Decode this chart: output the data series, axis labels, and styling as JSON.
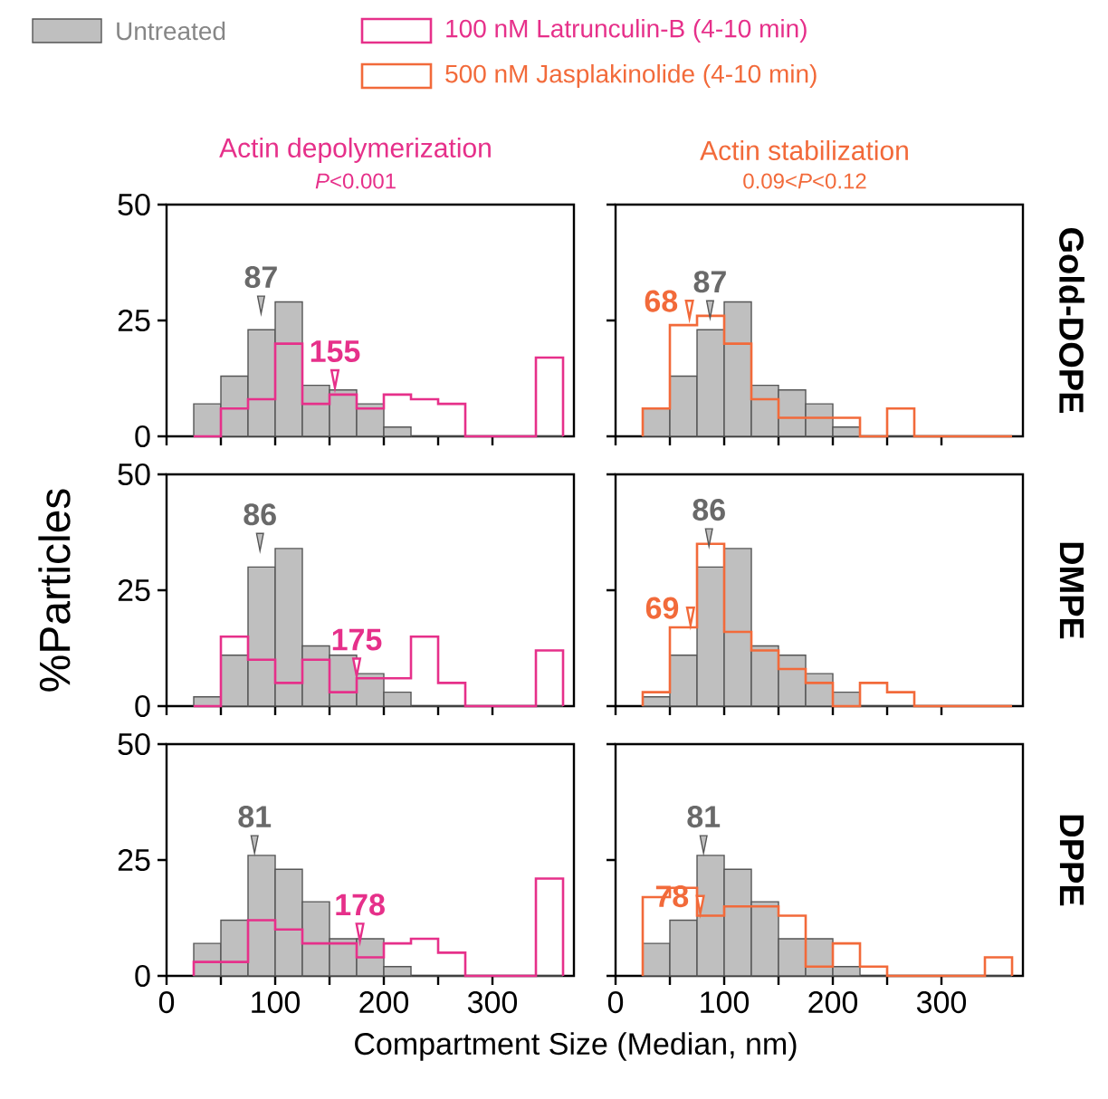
{
  "chart_data": [
    {
      "type": "histogram",
      "title": "Actin depolymerization",
      "subtitle": "*P*<0.001",
      "legend": "top",
      "tick_labels": "y",
      "bins": [
        25,
        50,
        75,
        100,
        125,
        150,
        175,
        200,
        225,
        250,
        275,
        300,
        325,
        340,
        365
      ],
      "series": [
        {
          "name": "Untreated",
          "color": "#bfbfbf",
          "values": [
            7,
            13,
            23,
            29,
            11,
            10,
            7,
            2,
            0,
            0,
            0,
            0,
            0,
            0
          ]
        },
        {
          "name": "100 nM Latrunculin-B (4-10 min)",
          "color": "#e6308a",
          "values": [
            0,
            6,
            8,
            20,
            7,
            9,
            6,
            9,
            8,
            7,
            0,
            0,
            0,
            17
          ]
        },
        {
          "type": "scatter",
          "marker": "triangle",
          "color": "#bfbfbf",
          "x": [
            87
          ],
          "values": [
            29
          ]
        },
        {
          "type": "scatter",
          "marker": "triangle",
          "color": "#e6308a",
          "x": [
            155
          ],
          "values": [
            13
          ]
        }
      ],
      "annotations": [
        {
          "text": "87",
          "x": 87,
          "y": 29
        },
        {
          "text": "155",
          "x": 155,
          "y": 13
        }
      ],
      "xlim": [
        0,
        375
      ],
      "ylim": [
        0,
        50
      ],
      "xticks": [
        0,
        {
          "value": 50,
          "label": null
        },
        100,
        {
          "value": 150,
          "label": null
        },
        200,
        {
          "value": 250,
          "label": null
        },
        300
      ],
      "yticks": [
        0,
        25,
        50
      ]
    },
    {
      "type": "histogram",
      "title": "Actin stabilization",
      "subtitle": "0.09<*P*<0.12",
      "legend": "top",
      "tick_labels": false,
      "y2label": "Gold-DOPE",
      "bins": [
        25,
        50,
        75,
        100,
        125,
        150,
        175,
        200,
        225,
        250,
        275,
        300,
        325,
        340,
        365
      ],
      "series": [
        {
          "color": "#bfbfbf",
          "values": [
            6,
            13,
            23,
            29,
            11,
            10,
            7,
            2,
            0,
            0,
            0,
            0,
            0,
            0
          ]
        },
        {
          "name": "500 nM Jasplakinolide (4-10 min)",
          "color": "#f26a3a",
          "values": [
            6,
            24,
            26,
            20,
            8,
            4,
            4,
            4,
            0,
            6,
            0,
            0,
            0,
            0
          ]
        },
        {
          "type": "scatter",
          "marker": "triangle",
          "color": "#bfbfbf",
          "x": [
            87
          ],
          "values": [
            28
          ]
        },
        {
          "type": "scatter",
          "marker": "triangle",
          "color": "#f26a3a",
          "x": [
            68
          ],
          "values": [
            28
          ]
        }
      ],
      "annotations": [
        {
          "text": "87",
          "x": 87,
          "y": 28
        },
        {
          "text": "68",
          "x": 68,
          "y": 28
        }
      ],
      "xlim": [
        0,
        375
      ],
      "ylim": [
        0,
        50
      ],
      "xticks": [
        0,
        {
          "value": 50,
          "label": null
        },
        100,
        {
          "value": 150,
          "label": null
        },
        200,
        {
          "value": 250,
          "label": null
        },
        300
      ],
      "yticks": [
        0,
        25,
        50
      ]
    },
    {
      "type": "histogram",
      "ylabel": "%Particles",
      "tick_labels": "y",
      "bins": [
        25,
        50,
        75,
        100,
        125,
        150,
        175,
        200,
        225,
        250,
        275,
        300,
        325,
        340,
        365
      ],
      "series": [
        {
          "color": "#bfbfbf",
          "values": [
            2,
            11,
            30,
            34,
            13,
            11,
            7,
            3,
            0,
            0,
            0,
            0,
            0,
            0
          ]
        },
        {
          "color": "#e6308a",
          "values": [
            0,
            15,
            10,
            5,
            10,
            3,
            6,
            6,
            15,
            5,
            0,
            0,
            0,
            12
          ]
        },
        {
          "type": "scatter",
          "marker": "triangle",
          "color": "#bfbfbf",
          "x": [
            86
          ],
          "values": [
            36
          ]
        },
        {
          "type": "scatter",
          "marker": "triangle",
          "color": "#e6308a",
          "x": [
            175
          ],
          "values": [
            9
          ]
        }
      ],
      "annotations": [
        {
          "text": "86",
          "x": 86,
          "y": 36
        },
        {
          "text": "175",
          "x": 175,
          "y": 9
        }
      ],
      "xlim": [
        0,
        375
      ],
      "ylim": [
        0,
        50
      ],
      "xticks": [
        0,
        {
          "value": 50,
          "label": null
        },
        100,
        {
          "value": 150,
          "label": null
        },
        200,
        {
          "value": 250,
          "label": null
        },
        300
      ],
      "yticks": [
        0,
        25,
        50
      ]
    },
    {
      "type": "histogram",
      "tick_labels": false,
      "y2label": "DMPE",
      "bins": [
        25,
        50,
        75,
        100,
        125,
        150,
        175,
        200,
        225,
        250,
        275,
        300,
        325,
        340,
        365
      ],
      "series": [
        {
          "color": "#bfbfbf",
          "values": [
            2,
            11,
            30,
            34,
            13,
            11,
            7,
            3,
            0,
            0,
            0,
            0,
            0,
            0
          ]
        },
        {
          "color": "#f26a3a",
          "values": [
            3,
            17,
            35,
            16,
            12,
            8,
            5,
            0,
            5,
            3,
            0,
            0,
            0,
            0
          ]
        },
        {
          "type": "scatter",
          "marker": "triangle",
          "color": "#bfbfbf",
          "x": [
            86
          ],
          "values": [
            37
          ]
        },
        {
          "type": "scatter",
          "marker": "triangle",
          "color": "#f26a3a",
          "x": [
            69
          ],
          "values": [
            20
          ]
        }
      ],
      "annotations": [
        {
          "text": "86",
          "x": 86,
          "y": 37
        },
        {
          "text": "69",
          "x": 69,
          "y": 20
        }
      ],
      "xlim": [
        0,
        375
      ],
      "ylim": [
        0,
        50
      ],
      "xticks": [
        0,
        {
          "value": 50,
          "label": null
        },
        100,
        {
          "value": 150,
          "label": null
        },
        200,
        {
          "value": 250,
          "label": null
        },
        300
      ],
      "yticks": [
        0,
        25,
        50
      ]
    },
    {
      "type": "histogram",
      "xlabel": "Compartment Size (Median, nm)",
      "bins": [
        25,
        50,
        75,
        100,
        125,
        150,
        175,
        200,
        225,
        250,
        275,
        300,
        325,
        340,
        365
      ],
      "series": [
        {
          "color": "#bfbfbf",
          "values": [
            7,
            12,
            26,
            23,
            16,
            8,
            8,
            2,
            0,
            0,
            0,
            0,
            0,
            0
          ]
        },
        {
          "color": "#e6308a",
          "values": [
            3,
            3,
            12,
            10,
            7,
            7,
            4,
            7,
            8,
            5,
            0,
            0,
            0,
            21
          ]
        },
        {
          "type": "scatter",
          "marker": "triangle",
          "color": "#bfbfbf",
          "x": [
            81
          ],
          "values": [
            29
          ]
        },
        {
          "type": "scatter",
          "marker": "triangle",
          "color": "#e6308a",
          "x": [
            178
          ],
          "values": [
            10
          ]
        }
      ],
      "annotations": [
        {
          "text": "81",
          "x": 81,
          "y": 29
        },
        {
          "text": "178",
          "x": 178,
          "y": 10
        }
      ],
      "xlim": [
        0,
        375
      ],
      "ylim": [
        0,
        50
      ],
      "xticks": [
        0,
        {
          "value": 50,
          "label": null
        },
        100,
        {
          "value": 150,
          "label": null
        },
        200,
        {
          "value": 250,
          "label": null
        },
        300
      ],
      "yticks": [
        0,
        25,
        50
      ]
    },
    {
      "type": "histogram",
      "tick_labels": "x",
      "y2label": "DPPE",
      "bins": [
        25,
        50,
        75,
        100,
        125,
        150,
        175,
        200,
        225,
        250,
        275,
        300,
        325,
        340,
        365
      ],
      "series": [
        {
          "color": "#bfbfbf",
          "values": [
            7,
            12,
            26,
            23,
            16,
            8,
            8,
            2,
            0,
            0,
            0,
            0,
            0,
            0
          ]
        },
        {
          "color": "#f26a3a",
          "values": [
            17,
            19,
            13,
            15,
            15,
            13,
            2,
            7,
            2,
            0,
            0,
            0,
            0,
            4
          ]
        },
        {
          "type": "scatter",
          "marker": "triangle",
          "color": "#bfbfbf",
          "x": [
            81
          ],
          "values": [
            29
          ]
        },
        {
          "type": "scatter",
          "marker": "triangle",
          "color": "#f26a3a",
          "x": [
            78
          ],
          "values": [
            16
          ]
        }
      ],
      "annotations": [
        {
          "text": "81",
          "x": 81,
          "y": 29
        },
        {
          "text": "78",
          "x": 78,
          "y": 16
        }
      ],
      "xlim": [
        0,
        375
      ],
      "ylim": [
        0,
        50
      ],
      "xticks": [
        0,
        {
          "value": 50,
          "label": null
        },
        100,
        {
          "value": 150,
          "label": null
        },
        200,
        {
          "value": 250,
          "label": null
        },
        300
      ],
      "yticks": [
        0,
        25,
        50
      ]
    }
  ]
}
